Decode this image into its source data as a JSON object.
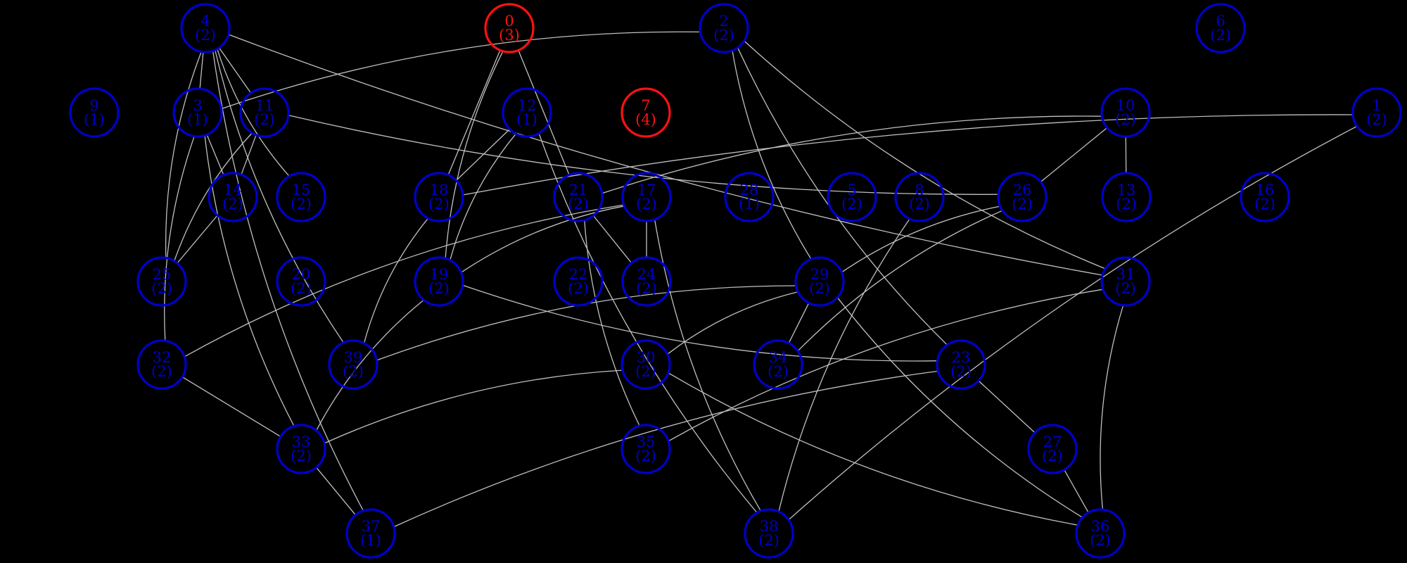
{
  "colors": {
    "background": "#000000",
    "edge": "#c0c0c0",
    "node_default": "#0000cc",
    "node_highlight": "#ff1111"
  },
  "nodes": [
    {
      "id": "0",
      "count": "(3)",
      "highlight": true
    },
    {
      "id": "1",
      "count": "(2)",
      "highlight": false
    },
    {
      "id": "2",
      "count": "(2)",
      "highlight": false
    },
    {
      "id": "3",
      "count": "(1)",
      "highlight": false
    },
    {
      "id": "4",
      "count": "(2)",
      "highlight": false
    },
    {
      "id": "5",
      "count": "(2)",
      "highlight": false
    },
    {
      "id": "6",
      "count": "(2)",
      "highlight": false
    },
    {
      "id": "7",
      "count": "(4)",
      "highlight": true
    },
    {
      "id": "8",
      "count": "(2)",
      "highlight": false
    },
    {
      "id": "9",
      "count": "(1)",
      "highlight": false
    },
    {
      "id": "10",
      "count": "(2)",
      "highlight": false
    },
    {
      "id": "11",
      "count": "(2)",
      "highlight": false
    },
    {
      "id": "12",
      "count": "(1)",
      "highlight": false
    },
    {
      "id": "13",
      "count": "(2)",
      "highlight": false
    },
    {
      "id": "14",
      "count": "(2)",
      "highlight": false
    },
    {
      "id": "15",
      "count": "(2)",
      "highlight": false
    },
    {
      "id": "16",
      "count": "(2)",
      "highlight": false
    },
    {
      "id": "17",
      "count": "(2)",
      "highlight": false
    },
    {
      "id": "18",
      "count": "(2)",
      "highlight": false
    },
    {
      "id": "19",
      "count": "(2)",
      "highlight": false
    },
    {
      "id": "20",
      "count": "(2)",
      "highlight": false
    },
    {
      "id": "21",
      "count": "(2)",
      "highlight": false
    },
    {
      "id": "22",
      "count": "(2)",
      "highlight": false
    },
    {
      "id": "23",
      "count": "(2)",
      "highlight": false
    },
    {
      "id": "24",
      "count": "(2)",
      "highlight": false
    },
    {
      "id": "25",
      "count": "(2)",
      "highlight": false
    },
    {
      "id": "26",
      "count": "(2)",
      "highlight": false
    },
    {
      "id": "27",
      "count": "(2)",
      "highlight": false
    },
    {
      "id": "28",
      "count": "(1)",
      "highlight": false
    },
    {
      "id": "29",
      "count": "(2)",
      "highlight": false
    },
    {
      "id": "30",
      "count": "(2)",
      "highlight": false
    },
    {
      "id": "31",
      "count": "(2)",
      "highlight": false
    },
    {
      "id": "32",
      "count": "(2)",
      "highlight": false
    },
    {
      "id": "33",
      "count": "(2)",
      "highlight": false
    },
    {
      "id": "34",
      "count": "(2)",
      "highlight": false
    },
    {
      "id": "35",
      "count": "(2)",
      "highlight": false
    },
    {
      "id": "36",
      "count": "(2)",
      "highlight": false
    },
    {
      "id": "37",
      "count": "(1)",
      "highlight": false
    },
    {
      "id": "38",
      "count": "(2)",
      "highlight": false
    },
    {
      "id": "39",
      "count": "(2)",
      "highlight": false
    }
  ],
  "edges": [
    [
      "4",
      "3"
    ],
    [
      "4",
      "11"
    ],
    [
      "4",
      "25"
    ],
    [
      "4",
      "15"
    ],
    [
      "4",
      "39"
    ],
    [
      "4",
      "37"
    ],
    [
      "4",
      "31"
    ],
    [
      "0",
      "18"
    ],
    [
      "0",
      "19"
    ],
    [
      "0",
      "21"
    ],
    [
      "2",
      "3"
    ],
    [
      "2",
      "29"
    ],
    [
      "2",
      "23"
    ],
    [
      "2",
      "31"
    ],
    [
      "3",
      "14"
    ],
    [
      "3",
      "32"
    ],
    [
      "3",
      "33"
    ],
    [
      "11",
      "14"
    ],
    [
      "11",
      "25"
    ],
    [
      "11",
      "26"
    ],
    [
      "12",
      "18"
    ],
    [
      "12",
      "19"
    ],
    [
      "12",
      "38"
    ],
    [
      "10",
      "21"
    ],
    [
      "10",
      "26"
    ],
    [
      "10",
      "13"
    ],
    [
      "1",
      "18"
    ],
    [
      "1",
      "38"
    ],
    [
      "14",
      "25"
    ],
    [
      "18",
      "39"
    ],
    [
      "21",
      "24"
    ],
    [
      "21",
      "35"
    ],
    [
      "17",
      "24"
    ],
    [
      "17",
      "19"
    ],
    [
      "17",
      "32"
    ],
    [
      "17",
      "38"
    ],
    [
      "8",
      "38"
    ],
    [
      "26",
      "29"
    ],
    [
      "26",
      "34"
    ],
    [
      "19",
      "23"
    ],
    [
      "19",
      "33"
    ],
    [
      "29",
      "39"
    ],
    [
      "29",
      "30"
    ],
    [
      "29",
      "34"
    ],
    [
      "29",
      "36"
    ],
    [
      "31",
      "35"
    ],
    [
      "31",
      "36"
    ],
    [
      "32",
      "33"
    ],
    [
      "30",
      "33"
    ],
    [
      "30",
      "36"
    ],
    [
      "23",
      "37"
    ],
    [
      "23",
      "27"
    ],
    [
      "27",
      "36"
    ],
    [
      "33",
      "37"
    ]
  ]
}
